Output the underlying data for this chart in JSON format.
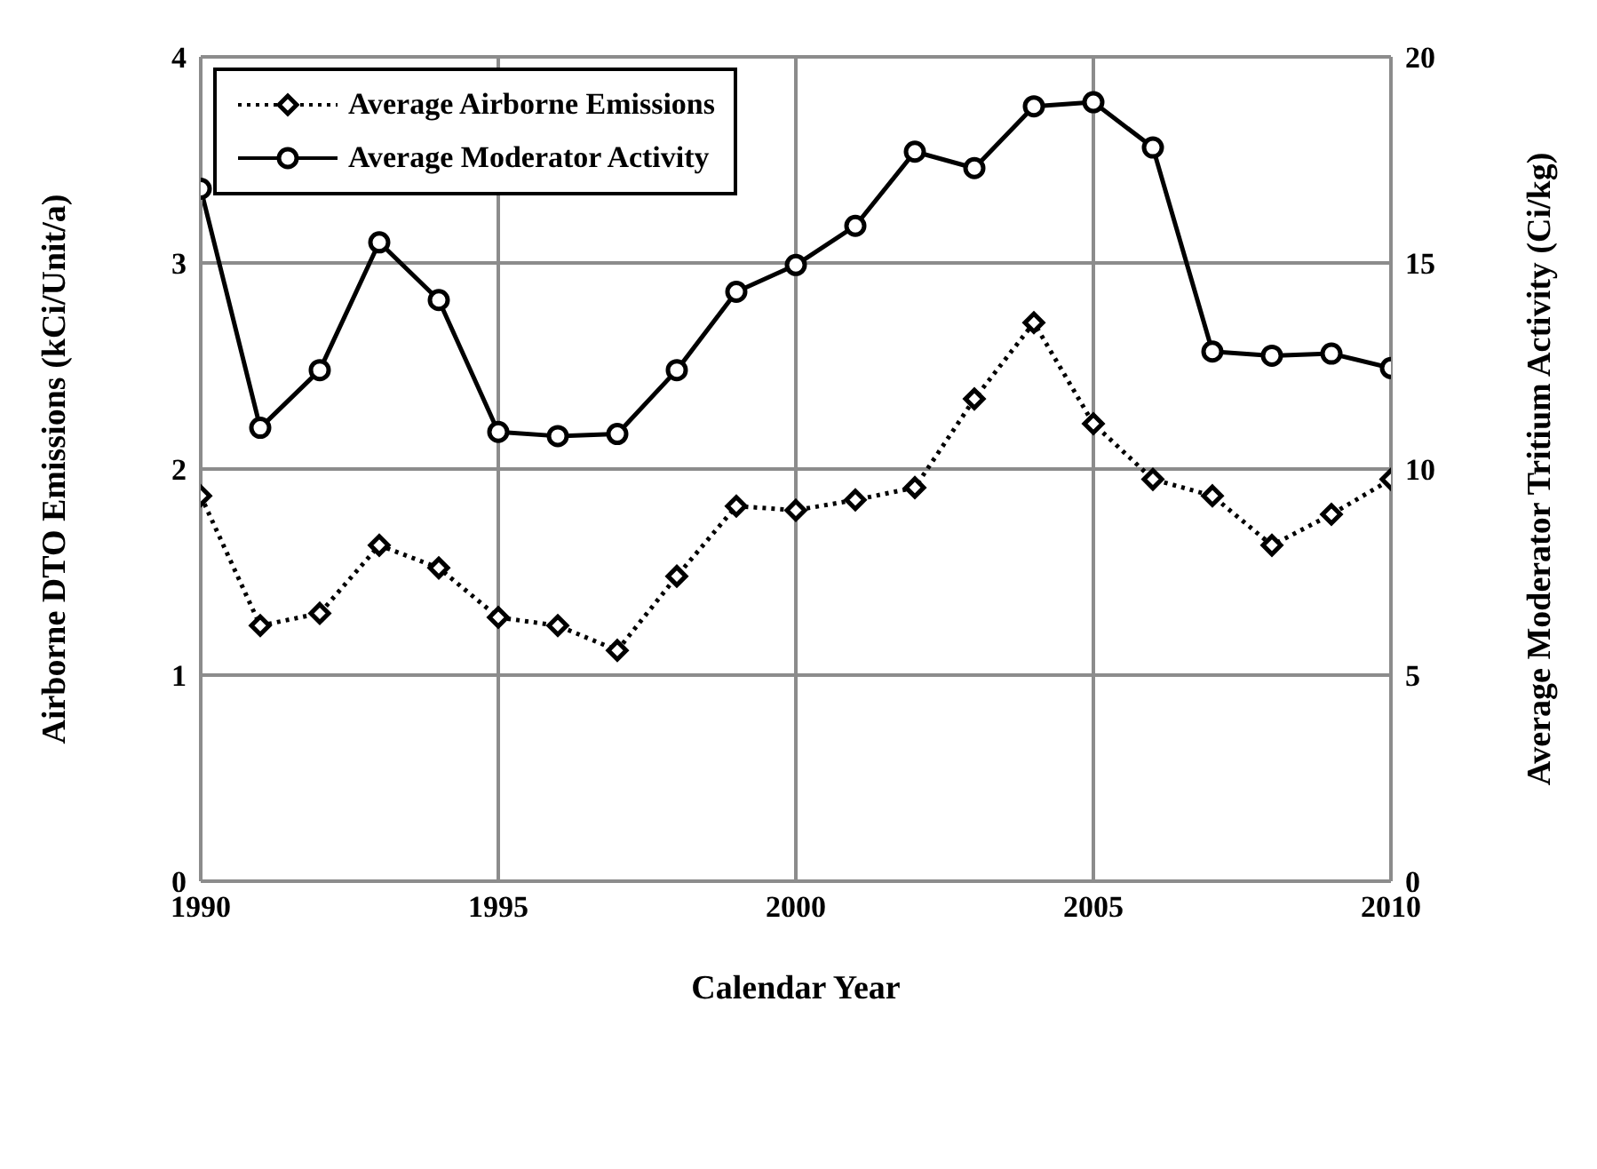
{
  "chart_data": {
    "type": "line",
    "xlabel": "Calendar Year",
    "ylabel": "Airborne DTO Emissions (kCi/Unit/a)",
    "y2label": "Average Moderator Tritium Activity (Ci/kg)",
    "x": [
      1990,
      1991,
      1992,
      1993,
      1994,
      1995,
      1996,
      1997,
      1998,
      1999,
      2000,
      2001,
      2002,
      2003,
      2004,
      2005,
      2006,
      2007,
      2008,
      2009,
      2010
    ],
    "series": [
      {
        "name": "Average Airborne Emissions",
        "color": "#000000",
        "marker": "diamond",
        "line_style": "dotted",
        "values": [
          1.87,
          1.24,
          1.3,
          1.63,
          1.52,
          1.28,
          1.24,
          1.12,
          1.48,
          1.82,
          1.8,
          1.85,
          1.91,
          2.34,
          2.71,
          2.22,
          1.95,
          1.87,
          1.63,
          1.78,
          1.95
        ]
      },
      {
        "name": "Average Moderator Activity",
        "color": "#000000",
        "marker": "circle",
        "line_style": "solid",
        "axis": "y2",
        "values": [
          16.8,
          11.0,
          12.4,
          15.5,
          14.1,
          10.9,
          10.8,
          10.85,
          12.4,
          14.3,
          14.95,
          15.9,
          17.7,
          17.3,
          18.8,
          18.9,
          17.8,
          12.85,
          12.75,
          12.8,
          12.45
        ]
      }
    ],
    "xlim": [
      1990,
      2010
    ],
    "xticks": [
      1990,
      1995,
      2000,
      2005,
      2010
    ],
    "ylim": [
      0,
      4
    ],
    "yticks": [
      0,
      1,
      2,
      3,
      4
    ],
    "y2lim": [
      0,
      20
    ],
    "y2ticks": [
      0,
      5,
      10,
      15,
      20
    ],
    "grid": true,
    "legend": "top left"
  }
}
